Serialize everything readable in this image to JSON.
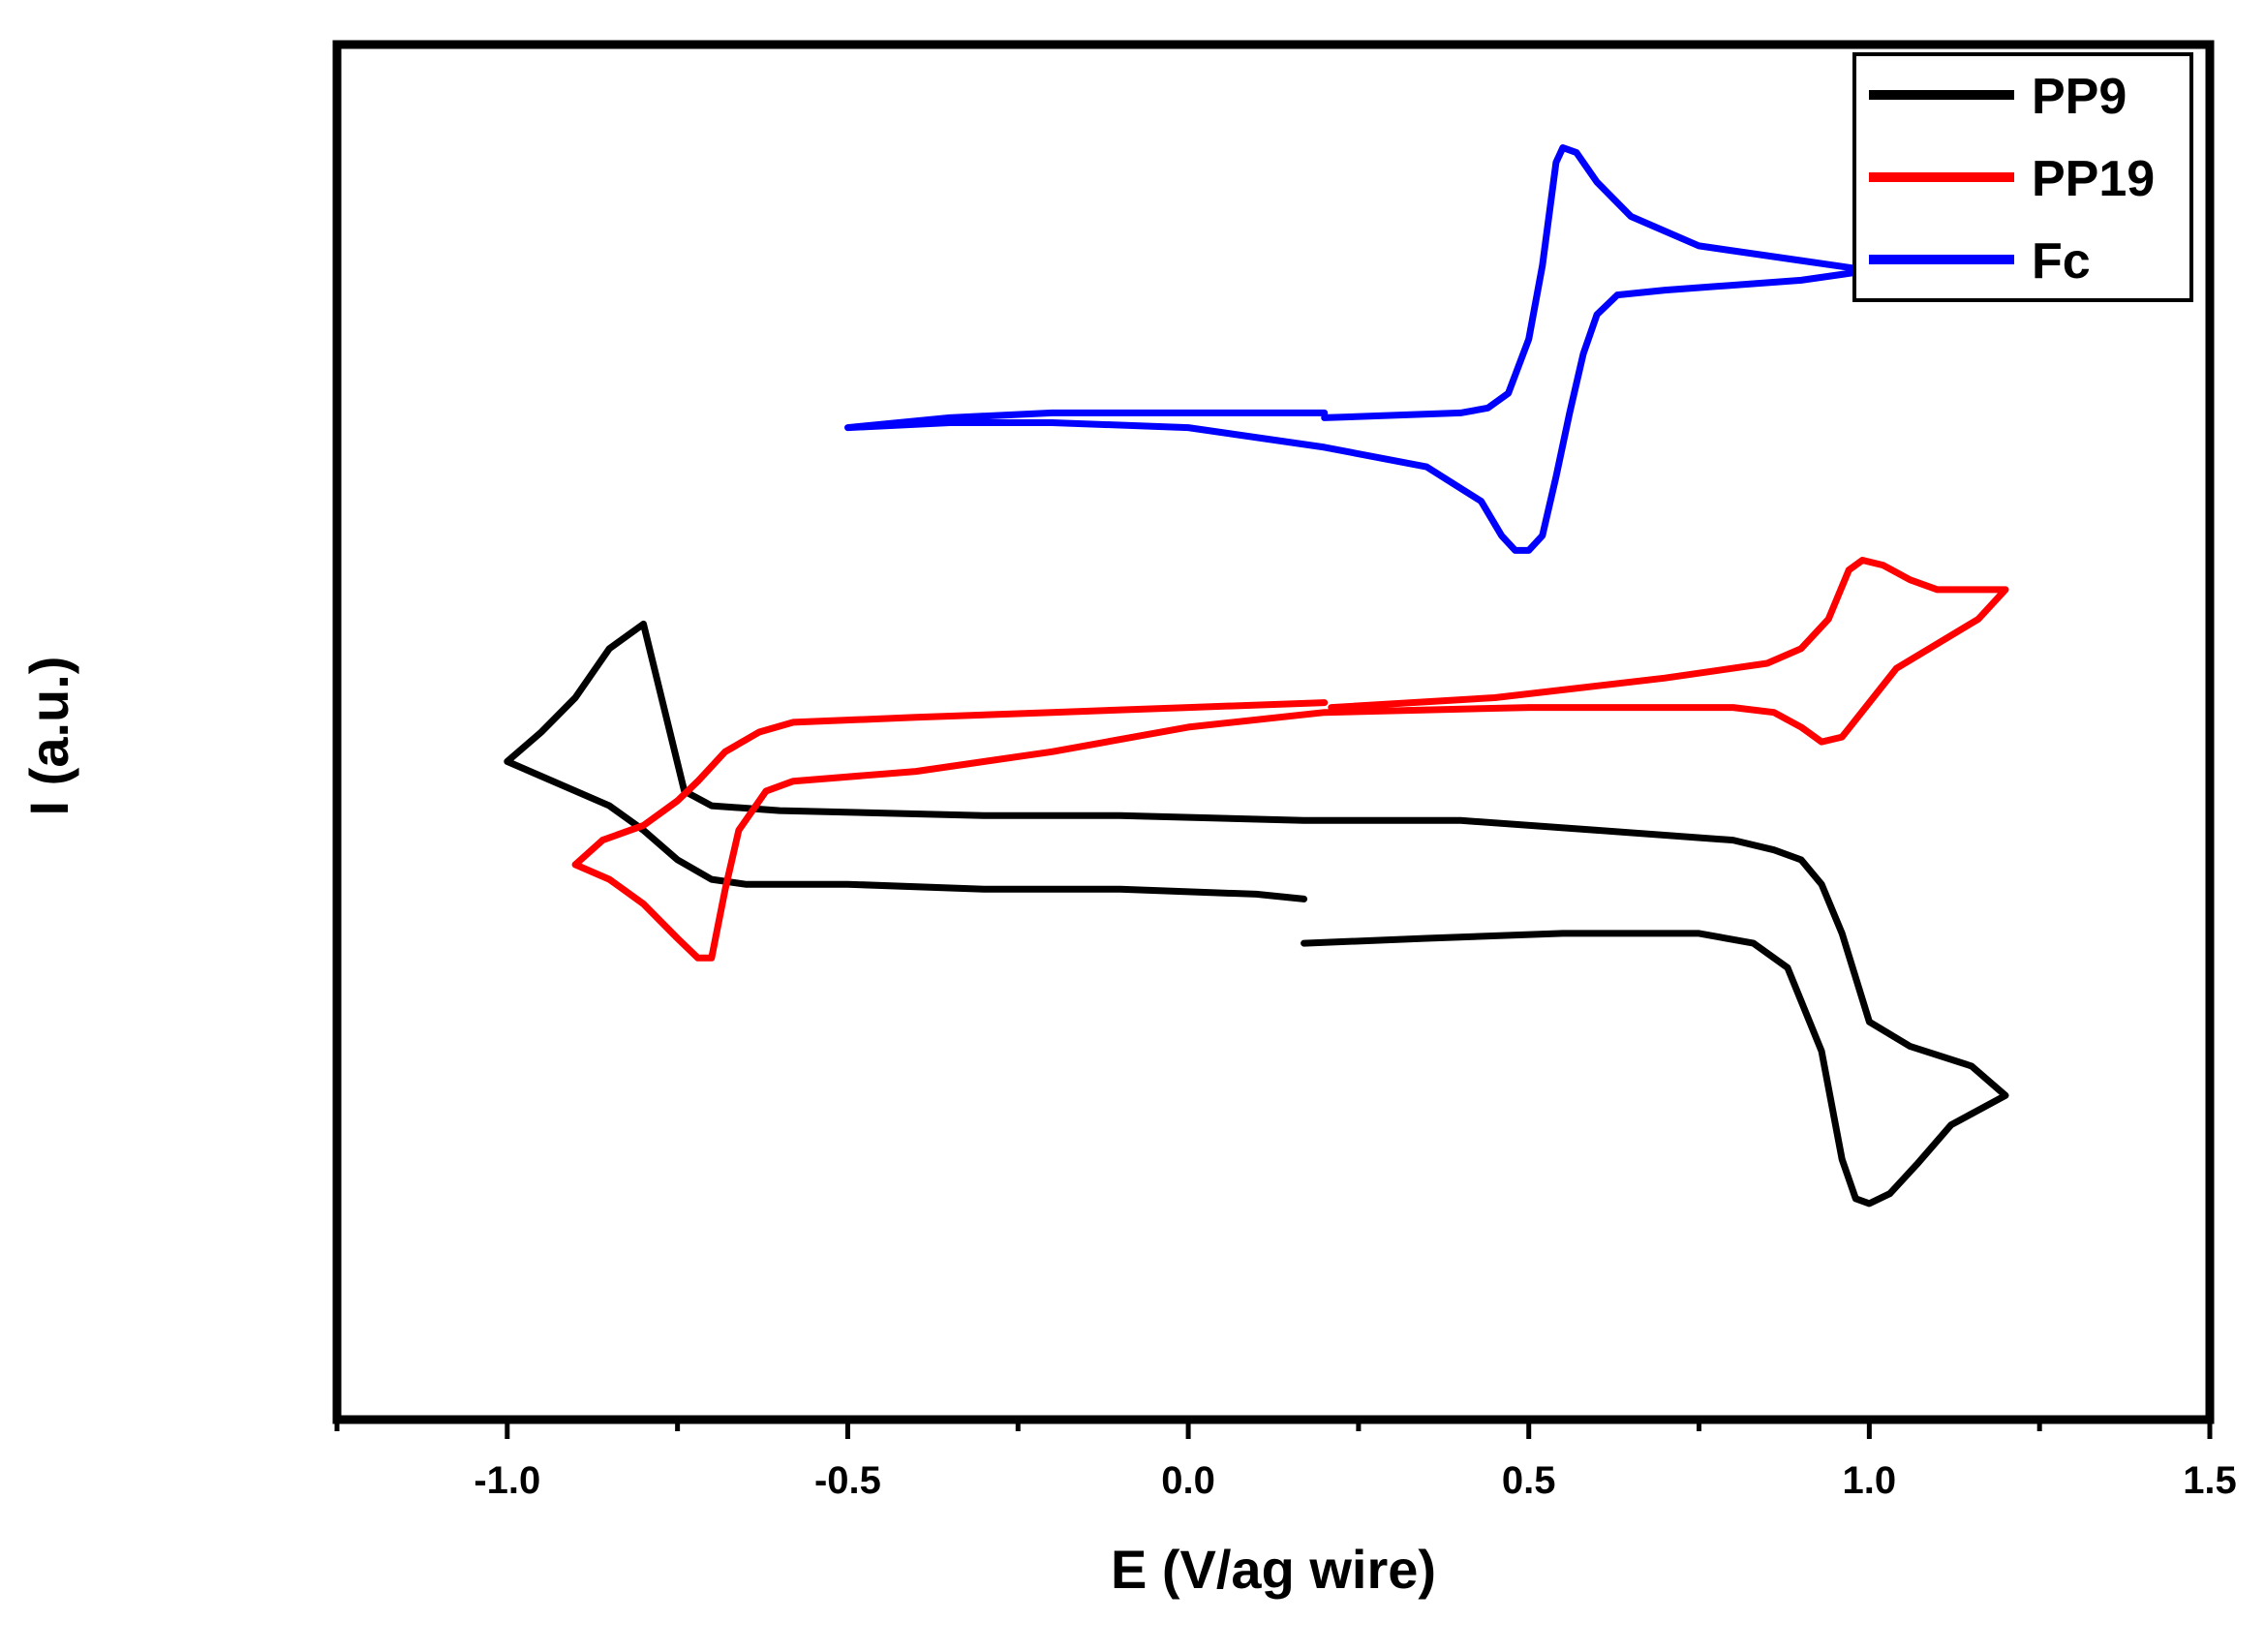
{
  "chart_data": {
    "type": "line",
    "title": "",
    "xlabel": "E (V/ag wire)",
    "ylabel": "I (a.u.)",
    "xlim": [
      -1.25,
      1.5
    ],
    "ylim": [
      -1.25,
      1.55
    ],
    "xticks": [
      -1.0,
      -0.5,
      0.0,
      0.5,
      1.0,
      1.5
    ],
    "xtick_labels": [
      "-1.0",
      "-0.5",
      "0.0",
      "0.5",
      "1.0",
      "1.5"
    ],
    "yticks_shown": false,
    "legend_position": "top-right",
    "series": [
      {
        "name": "PP9",
        "color": "#000000",
        "points": [
          [
            0.17,
            -0.28
          ],
          [
            0.35,
            -0.27
          ],
          [
            0.55,
            -0.26
          ],
          [
            0.75,
            -0.26
          ],
          [
            0.83,
            -0.28
          ],
          [
            0.88,
            -0.33
          ],
          [
            0.93,
            -0.5
          ],
          [
            0.96,
            -0.72
          ],
          [
            0.98,
            -0.8
          ],
          [
            1.0,
            -0.81
          ],
          [
            1.03,
            -0.79
          ],
          [
            1.07,
            -0.73
          ],
          [
            1.12,
            -0.65
          ],
          [
            1.2,
            -0.59
          ],
          [
            1.15,
            -0.53
          ],
          [
            1.06,
            -0.49
          ],
          [
            1.0,
            -0.44
          ],
          [
            0.96,
            -0.26
          ],
          [
            0.93,
            -0.16
          ],
          [
            0.9,
            -0.11
          ],
          [
            0.86,
            -0.09
          ],
          [
            0.8,
            -0.07
          ],
          [
            0.6,
            -0.05
          ],
          [
            0.4,
            -0.03
          ],
          [
            0.17,
            -0.03
          ],
          [
            -0.1,
            -0.02
          ],
          [
            -0.3,
            -0.02
          ],
          [
            -0.6,
            -0.01
          ],
          [
            -0.7,
            0.0
          ],
          [
            -0.74,
            0.03
          ],
          [
            -0.77,
            0.2
          ],
          [
            -0.8,
            0.37
          ],
          [
            -0.82,
            0.35
          ],
          [
            -0.85,
            0.32
          ],
          [
            -0.9,
            0.22
          ],
          [
            -0.95,
            0.15
          ],
          [
            -1.0,
            0.09
          ],
          [
            -0.95,
            0.06
          ],
          [
            -0.85,
            0.0
          ],
          [
            -0.8,
            -0.05
          ],
          [
            -0.75,
            -0.11
          ],
          [
            -0.7,
            -0.15
          ],
          [
            -0.65,
            -0.16
          ],
          [
            -0.5,
            -0.16
          ],
          [
            -0.3,
            -0.17
          ],
          [
            -0.1,
            -0.17
          ],
          [
            0.1,
            -0.18
          ],
          [
            0.17,
            -0.19
          ]
        ]
      },
      {
        "name": "PP19",
        "color": "#ff0000",
        "points": [
          [
            0.21,
            0.2
          ],
          [
            0.45,
            0.22
          ],
          [
            0.7,
            0.26
          ],
          [
            0.85,
            0.29
          ],
          [
            0.9,
            0.32
          ],
          [
            0.94,
            0.38
          ],
          [
            0.97,
            0.48
          ],
          [
            0.99,
            0.5
          ],
          [
            1.02,
            0.49
          ],
          [
            1.06,
            0.46
          ],
          [
            1.1,
            0.44
          ],
          [
            1.2,
            0.44
          ],
          [
            1.16,
            0.38
          ],
          [
            1.1,
            0.33
          ],
          [
            1.04,
            0.28
          ],
          [
            1.0,
            0.21
          ],
          [
            0.96,
            0.14
          ],
          [
            0.93,
            0.13
          ],
          [
            0.9,
            0.16
          ],
          [
            0.86,
            0.19
          ],
          [
            0.8,
            0.2
          ],
          [
            0.5,
            0.2
          ],
          [
            0.2,
            0.19
          ],
          [
            0.0,
            0.16
          ],
          [
            -0.2,
            0.11
          ],
          [
            -0.4,
            0.07
          ],
          [
            -0.58,
            0.05
          ],
          [
            -0.62,
            0.03
          ],
          [
            -0.66,
            -0.05
          ],
          [
            -0.68,
            -0.17
          ],
          [
            -0.7,
            -0.31
          ],
          [
            -0.72,
            -0.31
          ],
          [
            -0.75,
            -0.27
          ],
          [
            -0.8,
            -0.2
          ],
          [
            -0.85,
            -0.15
          ],
          [
            -0.9,
            -0.12
          ],
          [
            -0.86,
            -0.07
          ],
          [
            -0.8,
            -0.04
          ],
          [
            -0.75,
            0.01
          ],
          [
            -0.72,
            0.05
          ],
          [
            -0.68,
            0.11
          ],
          [
            -0.63,
            0.15
          ],
          [
            -0.58,
            0.17
          ],
          [
            -0.4,
            0.18
          ],
          [
            -0.2,
            0.19
          ],
          [
            0.0,
            0.2
          ],
          [
            0.2,
            0.21
          ]
        ]
      },
      {
        "name": "Fc",
        "color": "#0000ff",
        "points": [
          [
            0.2,
            0.79
          ],
          [
            0.4,
            0.8
          ],
          [
            0.44,
            0.81
          ],
          [
            0.47,
            0.84
          ],
          [
            0.5,
            0.95
          ],
          [
            0.52,
            1.1
          ],
          [
            0.54,
            1.31
          ],
          [
            0.55,
            1.34
          ],
          [
            0.57,
            1.33
          ],
          [
            0.6,
            1.27
          ],
          [
            0.65,
            1.2
          ],
          [
            0.75,
            1.14
          ],
          [
            0.9,
            1.11
          ],
          [
            1.0,
            1.09
          ],
          [
            0.9,
            1.07
          ],
          [
            0.7,
            1.05
          ],
          [
            0.63,
            1.04
          ],
          [
            0.6,
            1.0
          ],
          [
            0.58,
            0.92
          ],
          [
            0.56,
            0.8
          ],
          [
            0.54,
            0.67
          ],
          [
            0.52,
            0.55
          ],
          [
            0.5,
            0.52
          ],
          [
            0.48,
            0.52
          ],
          [
            0.46,
            0.55
          ],
          [
            0.43,
            0.62
          ],
          [
            0.35,
            0.69
          ],
          [
            0.2,
            0.73
          ],
          [
            0.0,
            0.77
          ],
          [
            -0.2,
            0.78
          ],
          [
            -0.35,
            0.78
          ],
          [
            -0.5,
            0.77
          ],
          [
            -0.35,
            0.79
          ],
          [
            -0.2,
            0.8
          ],
          [
            0.0,
            0.8
          ],
          [
            0.2,
            0.8
          ]
        ]
      }
    ]
  }
}
